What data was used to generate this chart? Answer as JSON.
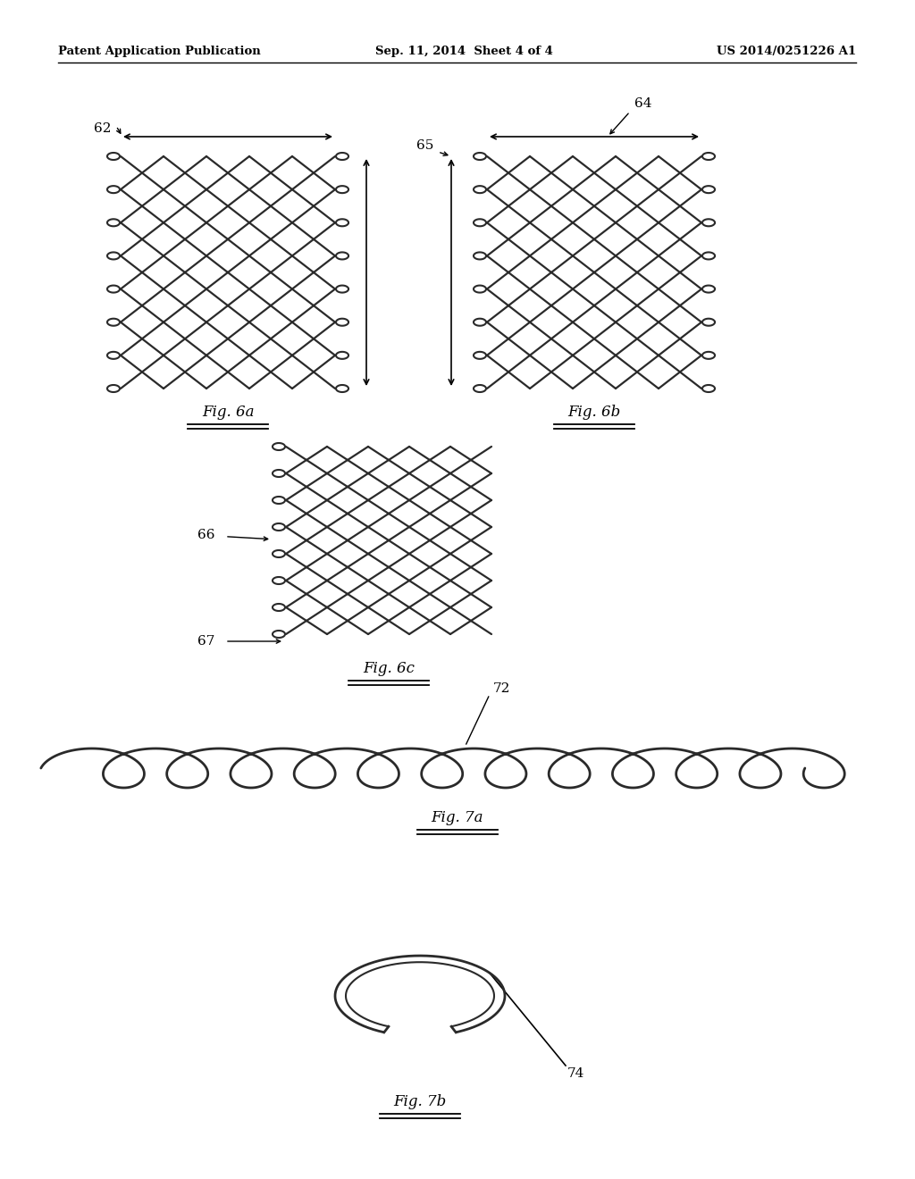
{
  "bg_color": "#ffffff",
  "text_color": "#000000",
  "header_left": "Patent Application Publication",
  "header_center": "Sep. 11, 2014  Sheet 4 of 4",
  "header_right": "US 2014/0251226 A1",
  "fig6a_label": "Fig. 6a",
  "fig6b_label": "Fig. 6b",
  "fig6c_label": "Fig. 6c",
  "fig7a_label": "Fig. 7a",
  "fig7b_label": "Fig. 7b",
  "label_62": "62",
  "label_64": "64",
  "label_65": "65",
  "label_66": "66",
  "label_67": "67",
  "label_72": "72",
  "label_74": "74"
}
